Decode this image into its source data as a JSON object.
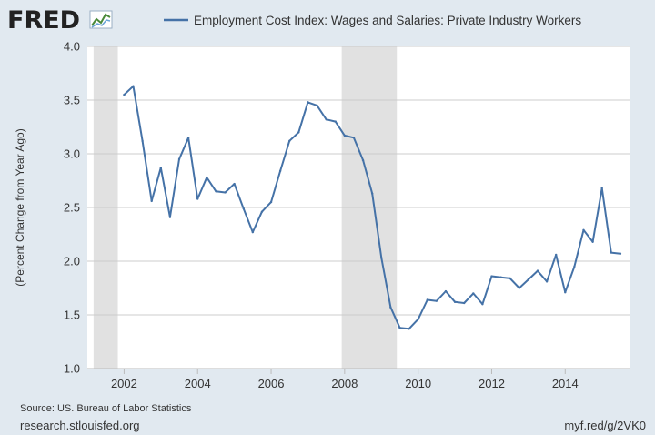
{
  "header": {
    "logo_text": "FRED",
    "logo_icon": "trend-line-icon"
  },
  "colors": {
    "background": "#e1e9f0",
    "plot_background": "#ffffff",
    "series": "#4572a7",
    "recession": "#e1e1e1",
    "grid": "#cccccc"
  },
  "footer": {
    "source": "Source: US. Bureau of Labor Statistics",
    "site": "research.stlouisfed.org",
    "short_url": "myf.red/g/2VK0"
  },
  "chart_data": {
    "type": "line",
    "title": "",
    "ylabel": "(Percent Change from Year Ago)",
    "xlabel": "",
    "xlim": [
      2001.0,
      2015.75
    ],
    "ylim": [
      1.0,
      4.0
    ],
    "y_ticks": [
      "1.0",
      "1.5",
      "2.0",
      "2.5",
      "3.0",
      "3.5",
      "4.0"
    ],
    "x_ticks": [
      "2002",
      "2004",
      "2006",
      "2008",
      "2010",
      "2012",
      "2014"
    ],
    "grid": "horizontal",
    "legend_position": "top",
    "recessions": [
      [
        2001.17,
        2001.83
      ],
      [
        2007.92,
        2009.42
      ]
    ],
    "series": [
      {
        "name": "Employment Cost Index: Wages and Salaries: Private Industry Workers",
        "x": [
          2002.0,
          2002.25,
          2002.5,
          2002.75,
          2003.0,
          2003.25,
          2003.5,
          2003.75,
          2004.0,
          2004.25,
          2004.5,
          2004.75,
          2005.0,
          2005.25,
          2005.5,
          2005.75,
          2006.0,
          2006.25,
          2006.5,
          2006.75,
          2007.0,
          2007.25,
          2007.5,
          2007.75,
          2008.0,
          2008.25,
          2008.5,
          2008.75,
          2009.0,
          2009.25,
          2009.5,
          2009.75,
          2010.0,
          2010.25,
          2010.5,
          2010.75,
          2011.0,
          2011.25,
          2011.5,
          2011.75,
          2012.0,
          2012.25,
          2012.5,
          2012.75,
          2013.0,
          2013.25,
          2013.5,
          2013.75,
          2014.0,
          2014.25,
          2014.5,
          2014.75,
          2015.0,
          2015.25,
          2015.5
        ],
        "values": [
          3.55,
          3.63,
          3.12,
          2.56,
          2.87,
          2.41,
          2.95,
          3.15,
          2.58,
          2.78,
          2.65,
          2.64,
          2.72,
          2.49,
          2.27,
          2.46,
          2.55,
          2.84,
          3.12,
          3.2,
          3.48,
          3.45,
          3.32,
          3.3,
          3.17,
          3.15,
          2.94,
          2.63,
          2.03,
          1.57,
          1.38,
          1.37,
          1.46,
          1.64,
          1.63,
          1.72,
          1.62,
          1.61,
          1.7,
          1.6,
          1.86,
          1.85,
          1.84,
          1.75,
          1.83,
          1.91,
          1.81,
          2.06,
          1.71,
          1.95,
          2.29,
          2.18,
          2.68,
          2.08,
          2.07
        ]
      }
    ]
  }
}
